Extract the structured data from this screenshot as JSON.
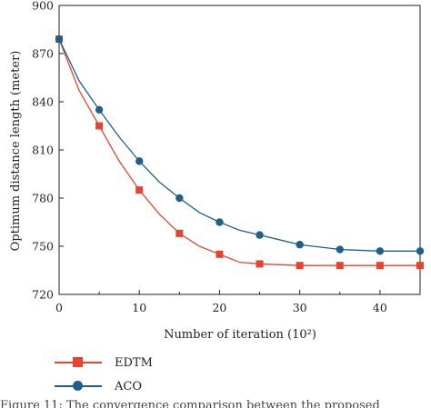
{
  "chart_data": {
    "type": "line",
    "xlabel": "Number of iteration (10²)",
    "ylabel": "Optimum distance length (meter)",
    "xlim": [
      0,
      45
    ],
    "ylim": [
      720,
      900
    ],
    "xticks": [
      0,
      10,
      20,
      30,
      40
    ],
    "yticks": [
      720,
      750,
      780,
      810,
      840,
      870,
      900
    ],
    "grid": false,
    "legend_position": "bottom-left",
    "series": [
      {
        "name": "EDTM",
        "color": "#e8432e",
        "marker": "square",
        "x": [
          0,
          2.5,
          5,
          7.5,
          10,
          12.5,
          15,
          17.5,
          20,
          22.5,
          25,
          27.5,
          30,
          35,
          40,
          45
        ],
        "y": [
          879,
          847,
          825,
          803,
          785,
          770,
          758,
          750,
          745,
          740,
          739,
          738.5,
          738,
          738,
          738,
          738
        ],
        "marker_x": [
          0,
          5,
          10,
          15,
          20,
          25,
          30,
          35,
          40,
          45
        ],
        "marker_y": [
          879,
          825,
          785,
          758,
          745,
          739,
          738,
          738,
          738,
          738
        ]
      },
      {
        "name": "ACO",
        "color": "#1f5f8b",
        "marker": "circle",
        "x": [
          0,
          2.5,
          5,
          7.5,
          10,
          12.5,
          15,
          17.5,
          20,
          22.5,
          25,
          27.5,
          30,
          32.5,
          35,
          37.5,
          40,
          45
        ],
        "y": [
          879,
          853,
          835,
          818,
          803,
          790,
          780,
          771,
          765,
          760,
          757,
          754,
          751,
          749.5,
          748,
          747.5,
          747,
          747
        ],
        "marker_x": [
          0,
          5,
          10,
          15,
          20,
          25,
          30,
          35,
          40,
          45
        ],
        "marker_y": [
          879,
          835,
          803,
          780,
          765,
          757,
          751,
          748,
          747,
          747
        ]
      }
    ]
  },
  "caption": "Figure 11: The convergence comparison between the proposed"
}
